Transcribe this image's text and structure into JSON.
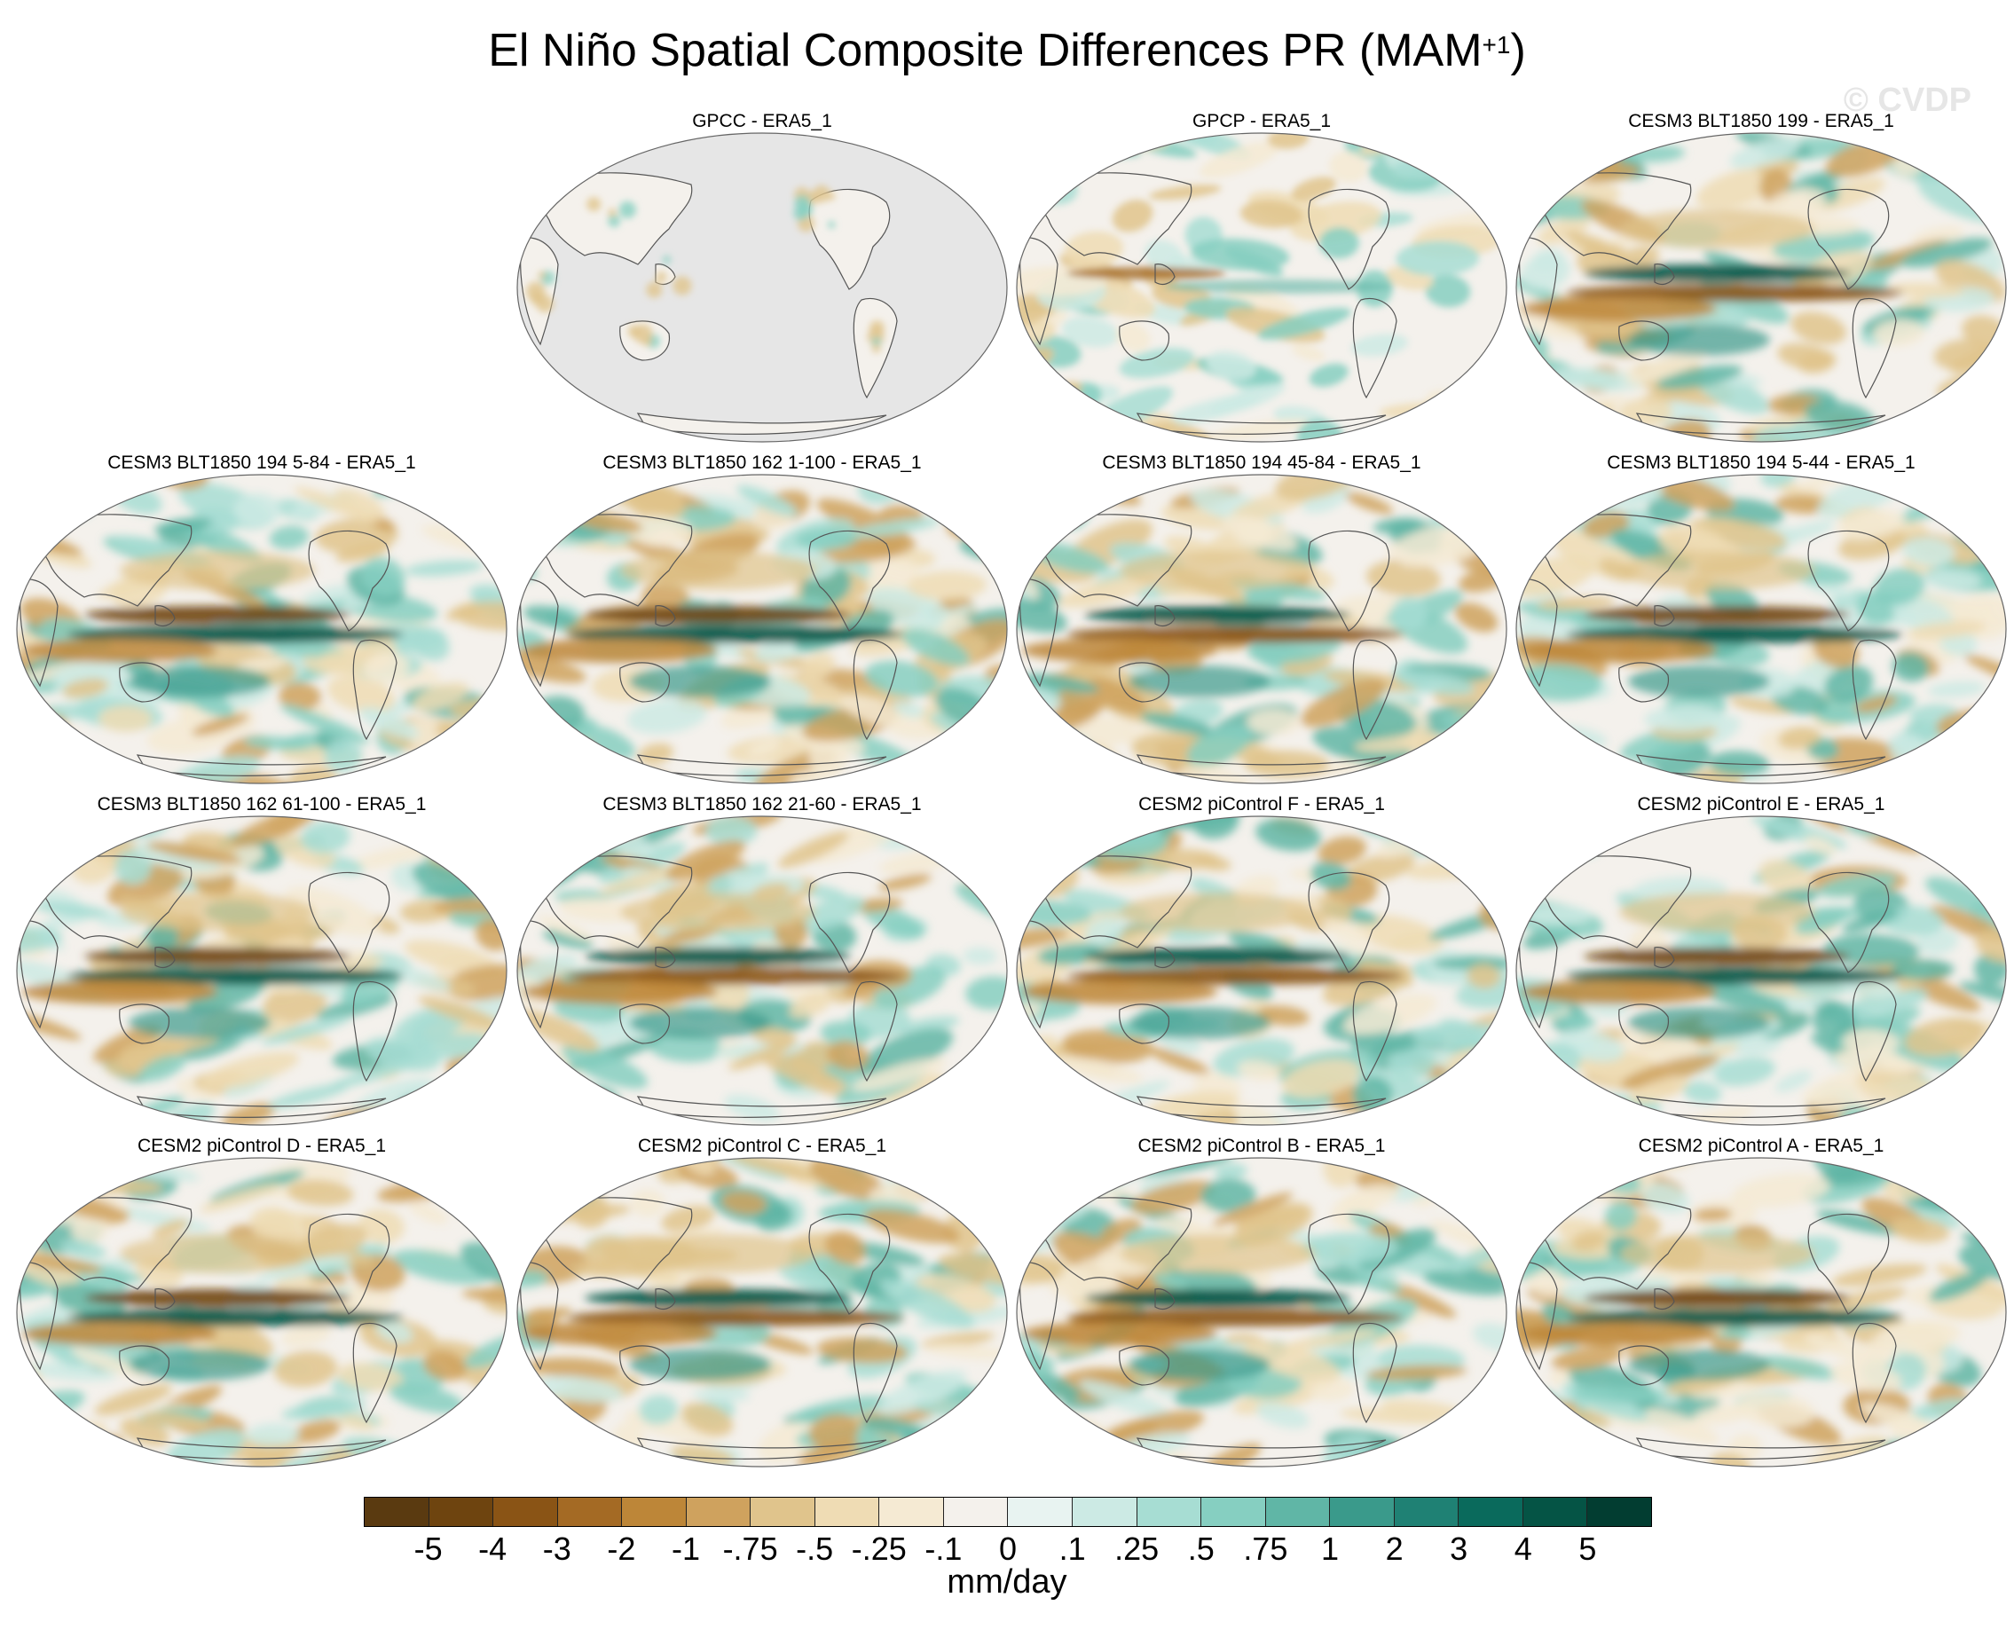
{
  "title": {
    "text": "El Niño Spatial Composite Differences PR (MAM",
    "superscript": "+1",
    "close": ")"
  },
  "watermark": "© CVDP",
  "panels": [
    {
      "title": "GPCC - ERA5_1",
      "style": "landonly",
      "row": 0,
      "col": 1
    },
    {
      "title": "GPCP - ERA5_1",
      "style": "weak",
      "row": 0,
      "col": 2
    },
    {
      "title": "CESM3 BLT1850 199 - ERA5_1",
      "style": "strong",
      "row": 0,
      "col": 3
    },
    {
      "title": "CESM3 BLT1850 194 5-84 - ERA5_1",
      "style": "strong",
      "row": 1,
      "col": 0
    },
    {
      "title": "CESM3 BLT1850 162 1-100 - ERA5_1",
      "style": "strong",
      "row": 1,
      "col": 1
    },
    {
      "title": "CESM3 BLT1850 194 45-84 - ERA5_1",
      "style": "strong",
      "row": 1,
      "col": 2
    },
    {
      "title": "CESM3 BLT1850 194 5-44 - ERA5_1",
      "style": "strong",
      "row": 1,
      "col": 3
    },
    {
      "title": "CESM3 BLT1850 162 61-100 - ERA5_1",
      "style": "strong",
      "row": 2,
      "col": 0
    },
    {
      "title": "CESM3 BLT1850 162 21-60 - ERA5_1",
      "style": "strong",
      "row": 2,
      "col": 1
    },
    {
      "title": "CESM2 piControl F - ERA5_1",
      "style": "strong",
      "row": 2,
      "col": 2
    },
    {
      "title": "CESM2 piControl E - ERA5_1",
      "style": "strong",
      "row": 2,
      "col": 3
    },
    {
      "title": "CESM2 piControl D - ERA5_1",
      "style": "strong",
      "row": 3,
      "col": 0
    },
    {
      "title": "CESM2 piControl C - ERA5_1",
      "style": "strong",
      "row": 3,
      "col": 1
    },
    {
      "title": "CESM2 piControl B - ERA5_1",
      "style": "strong",
      "row": 3,
      "col": 2
    },
    {
      "title": "CESM2 piControl A - ERA5_1",
      "style": "strong",
      "row": 3,
      "col": 3
    }
  ],
  "colorbar": {
    "colors": [
      "#5a3a10",
      "#6e440f",
      "#8a5415",
      "#a46a24",
      "#bd8638",
      "#cfa25e",
      "#e0c48c",
      "#efdcb4",
      "#f5ead3",
      "#f4f1ec",
      "#e8f3f1",
      "#cceae4",
      "#a7ddd3",
      "#86cfc1",
      "#60b6a6",
      "#3a9a8b",
      "#1f8174",
      "#0a6a5c",
      "#055445",
      "#023d31"
    ],
    "labels": [
      "-5",
      "-4",
      "-3",
      "-2",
      "-1",
      "-.75",
      "-.5",
      "-.25",
      "-.1",
      "0",
      ".1",
      ".25",
      ".5",
      ".75",
      "1",
      "2",
      "3",
      "4",
      "5"
    ],
    "units": "mm/day"
  }
}
